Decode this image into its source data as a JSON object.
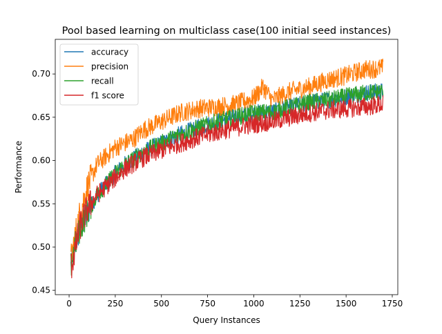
{
  "chart_data": {
    "type": "line",
    "title": "Pool based learning on multiclass case(100 initial seed instances)",
    "xlabel": "Query Instances",
    "ylabel": "Performance",
    "xlim": [
      -75,
      1780
    ],
    "ylim": [
      0.445,
      0.74
    ],
    "xticks": [
      0,
      250,
      500,
      750,
      1000,
      1250,
      1500,
      1750
    ],
    "yticks": [
      0.45,
      0.5,
      0.55,
      0.6,
      0.65,
      0.7
    ],
    "ytick_labels": [
      "0.45",
      "0.50",
      "0.55",
      "0.60",
      "0.65",
      "0.70"
    ],
    "legend": "upper-left",
    "grid": false,
    "x_range": [
      10,
      1700
    ],
    "series": [
      {
        "name": "accuracy",
        "color": "#1f77b4",
        "trend": [
          [
            10,
            0.478
          ],
          [
            30,
            0.5
          ],
          [
            60,
            0.522
          ],
          [
            100,
            0.54
          ],
          [
            150,
            0.56
          ],
          [
            200,
            0.572
          ],
          [
            250,
            0.585
          ],
          [
            300,
            0.595
          ],
          [
            350,
            0.602
          ],
          [
            400,
            0.61
          ],
          [
            500,
            0.62
          ],
          [
            600,
            0.63
          ],
          [
            700,
            0.638
          ],
          [
            800,
            0.645
          ],
          [
            900,
            0.65
          ],
          [
            1000,
            0.655
          ],
          [
            1100,
            0.656
          ],
          [
            1200,
            0.662
          ],
          [
            1300,
            0.667
          ],
          [
            1400,
            0.67
          ],
          [
            1500,
            0.674
          ],
          [
            1600,
            0.678
          ],
          [
            1700,
            0.68
          ]
        ]
      },
      {
        "name": "precision",
        "color": "#ff7f0e",
        "trend": [
          [
            10,
            0.485
          ],
          [
            30,
            0.51
          ],
          [
            60,
            0.54
          ],
          [
            100,
            0.57
          ],
          [
            150,
            0.595
          ],
          [
            200,
            0.605
          ],
          [
            250,
            0.615
          ],
          [
            300,
            0.62
          ],
          [
            350,
            0.625
          ],
          [
            400,
            0.635
          ],
          [
            500,
            0.645
          ],
          [
            600,
            0.655
          ],
          [
            700,
            0.66
          ],
          [
            800,
            0.662
          ],
          [
            900,
            0.665
          ],
          [
            1000,
            0.672
          ],
          [
            1050,
            0.685
          ],
          [
            1100,
            0.67
          ],
          [
            1200,
            0.68
          ],
          [
            1300,
            0.685
          ],
          [
            1400,
            0.693
          ],
          [
            1500,
            0.698
          ],
          [
            1600,
            0.705
          ],
          [
            1700,
            0.707
          ]
        ]
      },
      {
        "name": "recall",
        "color": "#2ca02c",
        "trend": [
          [
            10,
            0.478
          ],
          [
            30,
            0.5
          ],
          [
            60,
            0.522
          ],
          [
            100,
            0.54
          ],
          [
            150,
            0.56
          ],
          [
            200,
            0.572
          ],
          [
            250,
            0.585
          ],
          [
            300,
            0.595
          ],
          [
            350,
            0.602
          ],
          [
            400,
            0.61
          ],
          [
            500,
            0.62
          ],
          [
            600,
            0.63
          ],
          [
            700,
            0.638
          ],
          [
            800,
            0.645
          ],
          [
            900,
            0.65
          ],
          [
            1000,
            0.655
          ],
          [
            1100,
            0.656
          ],
          [
            1200,
            0.662
          ],
          [
            1300,
            0.667
          ],
          [
            1400,
            0.67
          ],
          [
            1500,
            0.674
          ],
          [
            1600,
            0.678
          ],
          [
            1700,
            0.68
          ]
        ]
      },
      {
        "name": "f1 score",
        "color": "#d62728",
        "trend": [
          [
            10,
            0.476
          ],
          [
            30,
            0.495
          ],
          [
            60,
            0.525
          ],
          [
            100,
            0.545
          ],
          [
            150,
            0.56
          ],
          [
            200,
            0.57
          ],
          [
            250,
            0.58
          ],
          [
            300,
            0.59
          ],
          [
            350,
            0.597
          ],
          [
            400,
            0.603
          ],
          [
            500,
            0.612
          ],
          [
            600,
            0.62
          ],
          [
            700,
            0.627
          ],
          [
            800,
            0.633
          ],
          [
            900,
            0.638
          ],
          [
            1000,
            0.642
          ],
          [
            1100,
            0.645
          ],
          [
            1200,
            0.65
          ],
          [
            1300,
            0.655
          ],
          [
            1400,
            0.658
          ],
          [
            1500,
            0.66
          ],
          [
            1600,
            0.662
          ],
          [
            1700,
            0.665
          ]
        ]
      }
    ]
  }
}
